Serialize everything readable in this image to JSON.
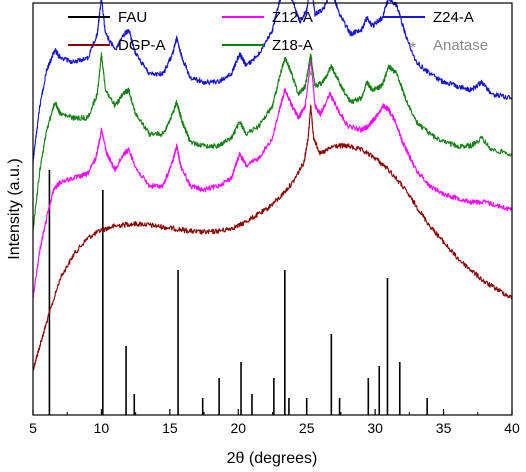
{
  "chart_data": {
    "type": "line",
    "xlabel": "2θ (degrees)",
    "ylabel": "Intensity (a.u.)",
    "xlim": [
      5,
      40
    ],
    "x_ticks": [
      5,
      10,
      15,
      20,
      25,
      30,
      35,
      40
    ],
    "y_ticks_labeled": false,
    "grid": false,
    "legend_position": "top",
    "legend": [
      {
        "label": "FAU",
        "color": "#000000",
        "kind": "line"
      },
      {
        "label": "Z12-A",
        "color": "#ff00ff",
        "kind": "line"
      },
      {
        "label": "Z24-A",
        "color": "#1414d2",
        "kind": "line"
      },
      {
        "label": "DGP-A",
        "color": "#8b0000",
        "kind": "line"
      },
      {
        "label": "Z18-A",
        "color": "#138013",
        "kind": "line"
      },
      {
        "label": "Anatase",
        "color": "#8a8a8a",
        "kind": "star"
      }
    ],
    "annotations": [
      {
        "text": "*",
        "x": 25.3,
        "color": "#8a8a8a"
      }
    ],
    "fau_reference_lines": {
      "x": [
        6.2,
        10.1,
        11.8,
        12.4,
        15.6,
        17.4,
        18.6,
        20.2,
        21.0,
        22.6,
        23.4,
        23.7,
        25.0,
        26.8,
        27.4,
        29.5,
        30.3,
        30.9,
        31.8,
        33.8
      ],
      "y": [
        0.6,
        0.55,
        0.16,
        0.04,
        0.35,
        0.03,
        0.08,
        0.12,
        0.04,
        0.08,
        0.35,
        0.03,
        0.03,
        0.19,
        0.03,
        0.08,
        0.11,
        0.33,
        0.12,
        0.03
      ]
    },
    "series": [
      {
        "name": "DGP-A",
        "color": "#8b0000",
        "x": [
          5.0,
          5.5,
          6.0,
          7.0,
          8.0,
          9.0,
          10.0,
          11.0,
          12.0,
          13.0,
          14.0,
          15.0,
          16.0,
          17.0,
          18.0,
          19.0,
          20.0,
          21.0,
          22.0,
          23.0,
          24.0,
          24.8,
          25.1,
          25.3,
          25.5,
          26.0,
          27.0,
          28.0,
          29.0,
          30.0,
          31.0,
          32.0,
          33.0,
          34.0,
          35.0,
          36.0,
          37.0,
          38.0,
          39.0,
          40.0
        ],
        "y": [
          0.1,
          0.16,
          0.22,
          0.33,
          0.39,
          0.43,
          0.45,
          0.46,
          0.465,
          0.465,
          0.46,
          0.455,
          0.45,
          0.445,
          0.445,
          0.45,
          0.46,
          0.48,
          0.5,
          0.53,
          0.57,
          0.62,
          0.68,
          0.76,
          0.68,
          0.64,
          0.66,
          0.66,
          0.65,
          0.63,
          0.6,
          0.56,
          0.51,
          0.46,
          0.42,
          0.38,
          0.35,
          0.32,
          0.3,
          0.28
        ]
      },
      {
        "name": "Z12-A",
        "color": "#ff00ff",
        "x": [
          5.0,
          5.5,
          6.0,
          6.5,
          7.0,
          8.0,
          9.0,
          9.6,
          10.0,
          10.4,
          11.0,
          11.6,
          12.0,
          12.6,
          13.5,
          14.5,
          15.2,
          15.5,
          15.8,
          16.5,
          17.5,
          18.5,
          19.5,
          20.1,
          20.6,
          21.5,
          22.5,
          23.0,
          23.4,
          23.8,
          24.4,
          24.9,
          25.3,
          25.6,
          26.0,
          26.7,
          27.3,
          28.0,
          29.0,
          29.5,
          30.0,
          30.6,
          31.0,
          31.5,
          32.0,
          33.0,
          34.0,
          35.0,
          36.0,
          37.0,
          38.0,
          39.0,
          40.0
        ],
        "y": [
          0.28,
          0.4,
          0.48,
          0.55,
          0.57,
          0.58,
          0.59,
          0.63,
          0.7,
          0.64,
          0.6,
          0.64,
          0.65,
          0.6,
          0.56,
          0.56,
          0.62,
          0.66,
          0.61,
          0.56,
          0.55,
          0.56,
          0.58,
          0.64,
          0.61,
          0.63,
          0.68,
          0.75,
          0.8,
          0.77,
          0.73,
          0.76,
          0.88,
          0.76,
          0.74,
          0.79,
          0.75,
          0.71,
          0.7,
          0.71,
          0.73,
          0.76,
          0.75,
          0.72,
          0.67,
          0.6,
          0.56,
          0.54,
          0.53,
          0.52,
          0.52,
          0.51,
          0.5
        ]
      },
      {
        "name": "Z18-A",
        "color": "#138013",
        "x": [
          5.0,
          5.5,
          6.0,
          6.6,
          7.0,
          8.0,
          9.0,
          9.7,
          10.0,
          10.3,
          11.0,
          11.6,
          12.0,
          12.5,
          13.5,
          14.5,
          15.2,
          15.5,
          15.9,
          16.5,
          17.5,
          18.5,
          19.5,
          20.1,
          20.6,
          21.5,
          22.5,
          23.0,
          23.4,
          23.8,
          24.4,
          24.9,
          25.3,
          25.6,
          26.2,
          26.8,
          27.5,
          28.2,
          29.0,
          29.4,
          29.8,
          30.5,
          31.0,
          31.6,
          32.2,
          33.0,
          34.0,
          35.0,
          36.0,
          37.0,
          37.8,
          38.5,
          40.0
        ],
        "y": [
          0.45,
          0.6,
          0.7,
          0.77,
          0.74,
          0.73,
          0.73,
          0.79,
          0.89,
          0.8,
          0.76,
          0.79,
          0.8,
          0.74,
          0.69,
          0.69,
          0.74,
          0.77,
          0.72,
          0.67,
          0.66,
          0.66,
          0.68,
          0.72,
          0.69,
          0.71,
          0.76,
          0.83,
          0.88,
          0.85,
          0.79,
          0.81,
          0.89,
          0.81,
          0.82,
          0.86,
          0.81,
          0.77,
          0.78,
          0.82,
          0.8,
          0.81,
          0.86,
          0.84,
          0.78,
          0.72,
          0.69,
          0.67,
          0.66,
          0.66,
          0.68,
          0.65,
          0.64
        ]
      },
      {
        "name": "Z24-A",
        "color": "#1414d2",
        "x": [
          5.0,
          5.5,
          6.0,
          6.6,
          7.0,
          8.0,
          9.0,
          9.7,
          10.0,
          10.3,
          11.0,
          11.7,
          12.0,
          12.5,
          13.5,
          14.5,
          15.2,
          15.5,
          15.9,
          16.5,
          17.5,
          18.5,
          19.5,
          20.1,
          20.6,
          21.5,
          22.5,
          23.0,
          23.4,
          23.9,
          24.5,
          25.0,
          25.3,
          25.6,
          26.2,
          26.8,
          27.4,
          28.2,
          29.0,
          29.4,
          29.8,
          30.5,
          31.0,
          31.6,
          32.2,
          33.0,
          34.0,
          35.0,
          36.0,
          37.0,
          37.8,
          38.5,
          40.0
        ],
        "y": [
          0.62,
          0.76,
          0.85,
          0.9,
          0.88,
          0.87,
          0.88,
          0.94,
          1.03,
          0.94,
          0.9,
          0.94,
          0.95,
          0.89,
          0.84,
          0.84,
          0.89,
          0.93,
          0.88,
          0.83,
          0.82,
          0.82,
          0.84,
          0.89,
          0.86,
          0.89,
          0.95,
          1.02,
          1.06,
          1.03,
          0.97,
          1.0,
          1.07,
          0.99,
          1.0,
          1.05,
          0.99,
          0.94,
          0.95,
          0.98,
          0.96,
          0.98,
          1.03,
          1.01,
          0.94,
          0.87,
          0.84,
          0.82,
          0.81,
          0.8,
          0.82,
          0.79,
          0.78
        ]
      }
    ]
  }
}
